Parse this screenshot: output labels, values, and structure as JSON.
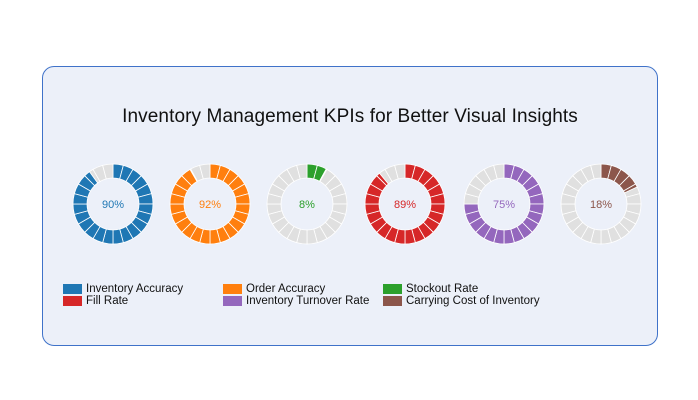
{
  "chart_data": {
    "type": "pie",
    "title": "Inventory Management KPIs for Better Visual Insights",
    "series": [
      {
        "name": "Inventory Accuracy",
        "value": 90,
        "label": "90%",
        "color": "#1f77b4"
      },
      {
        "name": "Order Accuracy",
        "value": 92,
        "label": "92%",
        "color": "#ff7f0e"
      },
      {
        "name": "Stockout Rate",
        "value": 8,
        "label": "8%",
        "color": "#2ca02c"
      },
      {
        "name": "Fill Rate",
        "value": 89,
        "label": "89%",
        "color": "#d62728"
      },
      {
        "name": "Inventory Turnover Rate",
        "value": 75,
        "label": "75%",
        "color": "#9467bd"
      },
      {
        "name": "Carrying Cost of Inventory",
        "value": 18,
        "label": "18%",
        "color": "#8c564b"
      }
    ],
    "remainder_color": "#e0e0e0",
    "legend_position": "bottom"
  }
}
